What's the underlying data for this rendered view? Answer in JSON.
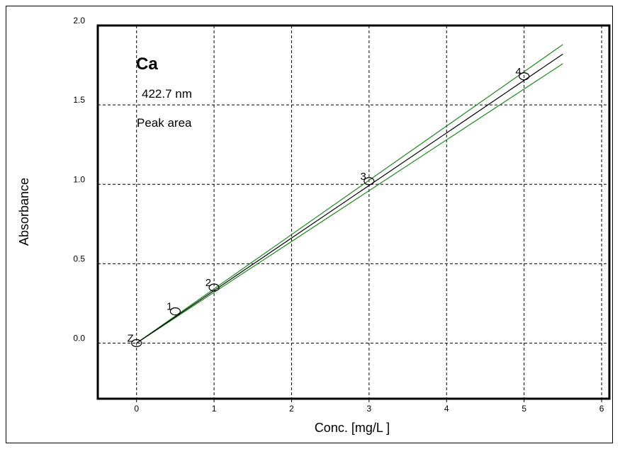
{
  "chart_data": {
    "type": "scatter",
    "title": "",
    "xlabel": "Conc. [mg/L ]",
    "ylabel": "Absorbance",
    "xlim": [
      -0.5,
      6.1
    ],
    "ylim": [
      -0.35,
      2.0
    ],
    "x_ticks": [
      "0",
      "1",
      "2",
      "3",
      "4",
      "5",
      "6"
    ],
    "y_ticks": [
      "0.0",
      "0.5",
      "1.0",
      "1.5",
      "2.0"
    ],
    "grid": true,
    "annotations": {
      "element": "Ca",
      "wavelength": "422.7 nm",
      "mode": "Peak area"
    },
    "points": [
      {
        "label": "Z",
        "x": 0,
        "y": 0.0
      },
      {
        "label": "1",
        "x": 0.5,
        "y": 0.2
      },
      {
        "label": "2",
        "x": 1.0,
        "y": 0.35
      },
      {
        "label": "3",
        "x": 3.0,
        "y": 1.02
      },
      {
        "label": "4",
        "x": 5.0,
        "y": 1.68
      }
    ],
    "fit_line": {
      "x": [
        0,
        5.5
      ],
      "y": [
        0,
        1.82
      ]
    },
    "confidence_band": {
      "upper": {
        "x": [
          0,
          5.5
        ],
        "y": [
          0,
          1.88
        ]
      },
      "lower": {
        "x": [
          0,
          5.5
        ],
        "y": [
          0,
          1.76
        ]
      }
    },
    "colors": {
      "fit": "#000000",
      "band": "#1a8c1a",
      "points": "#000000"
    }
  }
}
